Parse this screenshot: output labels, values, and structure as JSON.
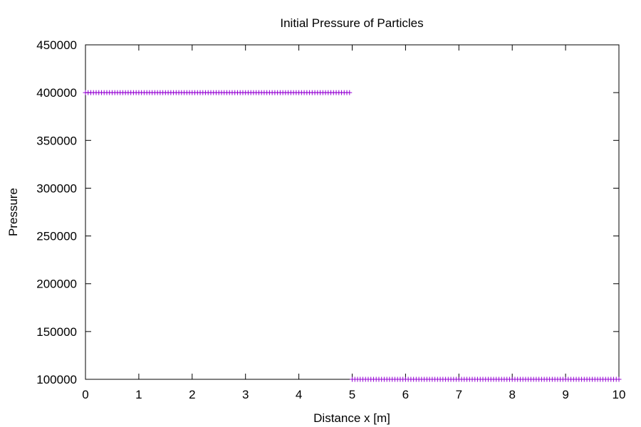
{
  "chart_data": {
    "type": "scatter",
    "title": "Initial Pressure of Particles",
    "xlabel": "Distance x [m]",
    "ylabel": "Pressure",
    "xlim": [
      0,
      10
    ],
    "ylim": [
      100000,
      450000
    ],
    "x_ticks": [
      0,
      1,
      2,
      3,
      4,
      5,
      6,
      7,
      8,
      9,
      10
    ],
    "y_ticks": [
      100000,
      150000,
      200000,
      250000,
      300000,
      350000,
      400000,
      450000
    ],
    "grid": false,
    "legend": "none",
    "marker": "plus",
    "marker_color": "#9400d3",
    "series": [
      {
        "points_segments": [
          {
            "x_start": 0.0,
            "x_end": 4.95,
            "x_step": 0.05,
            "y": 400000
          },
          {
            "x_start": 5.0,
            "x_end": 10.0,
            "x_step": 0.05,
            "y": 100000
          }
        ]
      }
    ]
  }
}
